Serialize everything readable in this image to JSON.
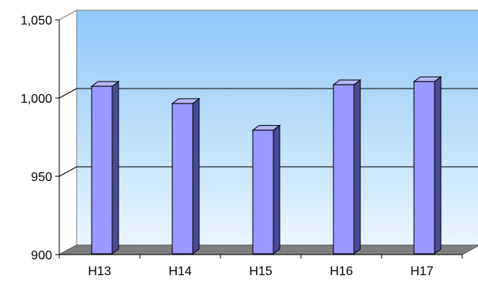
{
  "chart_data": {
    "type": "bar",
    "title": "",
    "xlabel": "",
    "ylabel": "",
    "categories": [
      "H13",
      "H14",
      "H15",
      "H16",
      "H17"
    ],
    "values": [
      1007,
      996,
      979,
      1008,
      1010
    ],
    "ylim": [
      900,
      1050
    ],
    "yticks": [
      900,
      950,
      1000,
      1050
    ],
    "ytick_labels": [
      "900",
      "950",
      "1,000",
      "1,050"
    ],
    "grid": true,
    "legend": "none",
    "colors": {
      "bar_front": "#9999ff",
      "bar_side": "#4b4b9a",
      "bar_top": "#b7b7ff",
      "wall_top": "#8ec8f8",
      "wall_bottom": "#eaf5ff",
      "floor": "#7f7f7f"
    }
  }
}
